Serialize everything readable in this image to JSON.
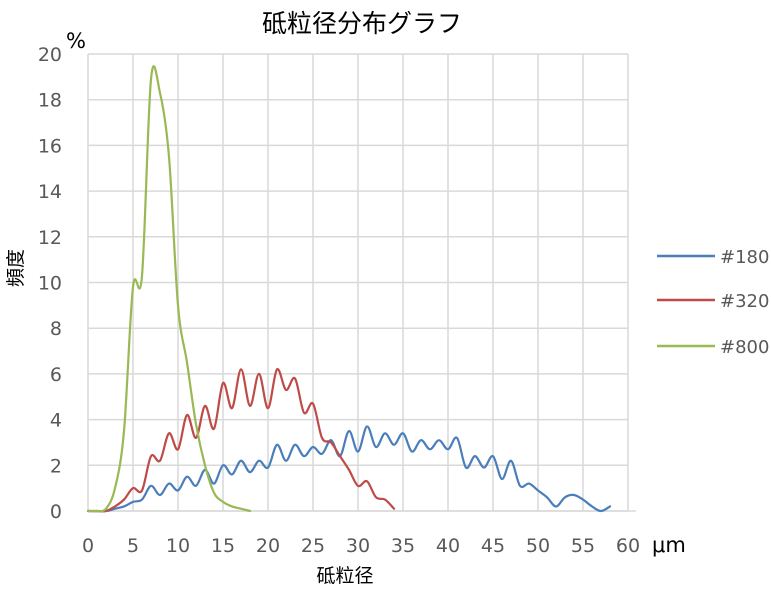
{
  "chart_data": {
    "type": "line",
    "title": "砥粒径分布グラフ",
    "xlabel": "砥粒径",
    "ylabel": "頻度",
    "x_unit": "μm",
    "y_unit": "%",
    "xlim": [
      0,
      60
    ],
    "ylim": [
      0,
      20
    ],
    "x_ticks": [
      "0",
      "5",
      "10",
      "15",
      "20",
      "25",
      "30",
      "35",
      "40",
      "45",
      "50",
      "55",
      "60"
    ],
    "y_ticks": [
      "0",
      "2",
      "4",
      "6",
      "8",
      "10",
      "12",
      "14",
      "16",
      "18",
      "20"
    ],
    "grid": true,
    "legend_position": "right",
    "series": [
      {
        "name": "#180",
        "color": "#4a7ebb",
        "points": [
          [
            0,
            0
          ],
          [
            2,
            0
          ],
          [
            3,
            0.1
          ],
          [
            4,
            0.2
          ],
          [
            5,
            0.4
          ],
          [
            6,
            0.5
          ],
          [
            7,
            1.1
          ],
          [
            8,
            0.7
          ],
          [
            9,
            1.2
          ],
          [
            10,
            0.9
          ],
          [
            11,
            1.5
          ],
          [
            12,
            1.1
          ],
          [
            13,
            1.8
          ],
          [
            14,
            1.2
          ],
          [
            15,
            2.0
          ],
          [
            16,
            1.6
          ],
          [
            17,
            2.2
          ],
          [
            18,
            1.7
          ],
          [
            19,
            2.2
          ],
          [
            20,
            1.9
          ],
          [
            21,
            2.9
          ],
          [
            22,
            2.2
          ],
          [
            23,
            2.9
          ],
          [
            24,
            2.4
          ],
          [
            25,
            2.8
          ],
          [
            26,
            2.5
          ],
          [
            27,
            3.1
          ],
          [
            28,
            2.4
          ],
          [
            29,
            3.5
          ],
          [
            30,
            2.6
          ],
          [
            31,
            3.7
          ],
          [
            32,
            2.8
          ],
          [
            33,
            3.4
          ],
          [
            34,
            2.9
          ],
          [
            35,
            3.4
          ],
          [
            36,
            2.6
          ],
          [
            37,
            3.1
          ],
          [
            38,
            2.7
          ],
          [
            39,
            3.1
          ],
          [
            40,
            2.7
          ],
          [
            41,
            3.2
          ],
          [
            42,
            1.9
          ],
          [
            43,
            2.4
          ],
          [
            44,
            1.9
          ],
          [
            45,
            2.4
          ],
          [
            46,
            1.4
          ],
          [
            47,
            2.2
          ],
          [
            48,
            1.1
          ],
          [
            49,
            1.2
          ],
          [
            50,
            0.9
          ],
          [
            51,
            0.6
          ],
          [
            52,
            0.2
          ],
          [
            53,
            0.6
          ],
          [
            54,
            0.7
          ],
          [
            55,
            0.5
          ],
          [
            56,
            0.2
          ],
          [
            57,
            0
          ],
          [
            58,
            0.2
          ]
        ]
      },
      {
        "name": "#320",
        "color": "#be4b48",
        "points": [
          [
            0,
            0
          ],
          [
            1,
            0
          ],
          [
            2,
            0
          ],
          [
            3,
            0.2
          ],
          [
            4,
            0.5
          ],
          [
            5,
            1.0
          ],
          [
            6,
            0.9
          ],
          [
            7,
            2.4
          ],
          [
            8,
            2.2
          ],
          [
            9,
            3.4
          ],
          [
            10,
            2.7
          ],
          [
            11,
            4.2
          ],
          [
            12,
            3.2
          ],
          [
            13,
            4.6
          ],
          [
            14,
            3.6
          ],
          [
            15,
            5.6
          ],
          [
            16,
            4.5
          ],
          [
            17,
            6.2
          ],
          [
            18,
            4.6
          ],
          [
            19,
            6.0
          ],
          [
            20,
            4.5
          ],
          [
            21,
            6.2
          ],
          [
            22,
            5.3
          ],
          [
            23,
            5.8
          ],
          [
            24,
            4.3
          ],
          [
            25,
            4.7
          ],
          [
            26,
            3.2
          ],
          [
            27,
            3.0
          ],
          [
            28,
            2.4
          ],
          [
            29,
            1.8
          ],
          [
            30,
            1.1
          ],
          [
            31,
            1.3
          ],
          [
            32,
            0.6
          ],
          [
            33,
            0.5
          ],
          [
            34,
            0.1
          ]
        ]
      },
      {
        "name": "#800",
        "color": "#98b954",
        "points": [
          [
            0,
            0
          ],
          [
            1,
            0
          ],
          [
            2,
            0.1
          ],
          [
            3,
            1.0
          ],
          [
            4,
            3.5
          ],
          [
            5,
            9.8
          ],
          [
            6,
            10.3
          ],
          [
            7,
            18.9
          ],
          [
            8,
            18.3
          ],
          [
            9,
            15.5
          ],
          [
            10,
            9.0
          ],
          [
            11,
            6.5
          ],
          [
            12,
            3.8
          ],
          [
            13,
            2.0
          ],
          [
            14,
            0.8
          ],
          [
            15,
            0.4
          ],
          [
            16,
            0.2
          ],
          [
            17,
            0.1
          ],
          [
            18,
            0
          ]
        ]
      }
    ]
  }
}
